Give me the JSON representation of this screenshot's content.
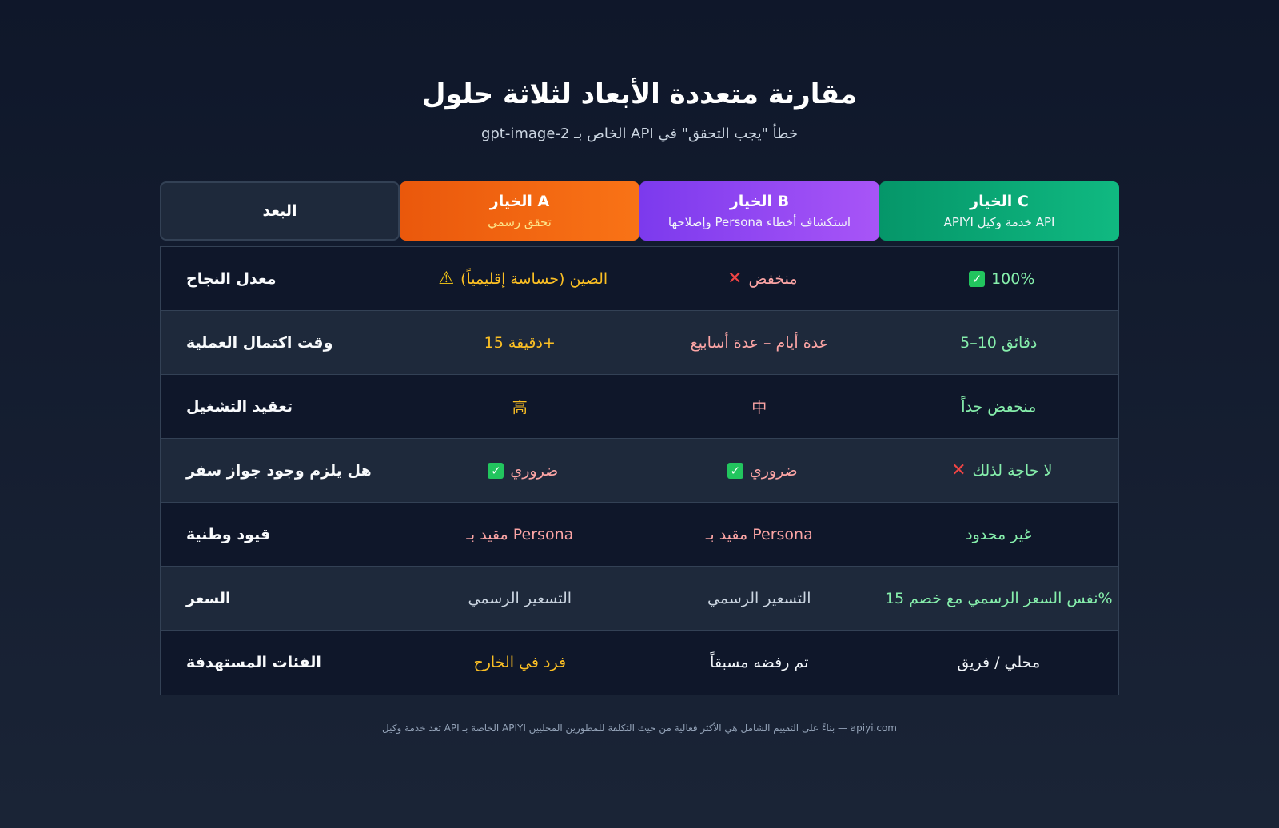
{
  "title": "مقارنة متعددة الأبعاد لثلاثة حلول",
  "subtitle": "gpt-image-2 الخاص بـ API خطأ \"يجب التحقق\" في",
  "header": {
    "dimension": "البعد",
    "options": [
      {
        "title": "الخيار A",
        "subtitle": "تحقق رسمي",
        "color": "#f97316"
      },
      {
        "title": "الخيار B",
        "subtitle": "وإصلاحها Persona استكشاف أخطاء",
        "color": "#a855f7"
      },
      {
        "title": "الخيار C",
        "subtitle": "APIYI خدمة وكيل API",
        "color": "#10b981"
      }
    ]
  },
  "rows": [
    {
      "label": "معدل النجاح",
      "a": "الصين (حساسة إقليمياً)",
      "a_icon": "warning-icon",
      "b": "منخفض",
      "b_icon": "cross-icon",
      "c": "100%",
      "c_icon": "check-icon"
    },
    {
      "label": "وقت اكتمال العملية",
      "a": "15 دقيقة+",
      "b": "عدة أيام – عدة أسابيع",
      "c": "5–10 دقائق"
    },
    {
      "label": "تعقيد التشغيل",
      "a": "高",
      "b": "中",
      "c": "منخفض جداً"
    },
    {
      "label": "هل يلزم وجود جواز سفر",
      "a": "ضروري",
      "a_icon": "check-icon",
      "b": "ضروري",
      "b_icon": "check-icon",
      "c": "لا حاجة لذلك",
      "c_icon": "cross-icon"
    },
    {
      "label": "قيود وطنية",
      "a": "مقيد بـ Persona",
      "b": "مقيد بـ Persona",
      "c": "غير محدود"
    },
    {
      "label": "السعر",
      "a": "التسعير الرسمي",
      "b": "التسعير الرسمي",
      "c": "نفس السعر الرسمي مع خصم 15%"
    },
    {
      "label": "الفئات المستهدفة",
      "a": "فرد في الخارج",
      "b": "تم رفضه مسبقاً",
      "c": "محلي / فريق"
    }
  ],
  "footer": "تعد خدمة وكيل API الخاصة بـ APIYI بناءً على التقييم الشامل هي الأكثر فعالية من حيث التكلفة للمطورين المحليين — apiyi.com",
  "colors": {
    "yellow": "#fbbf24",
    "pink": "#fca5a5",
    "green": "#86efac",
    "gray": "#cbd5e1"
  }
}
